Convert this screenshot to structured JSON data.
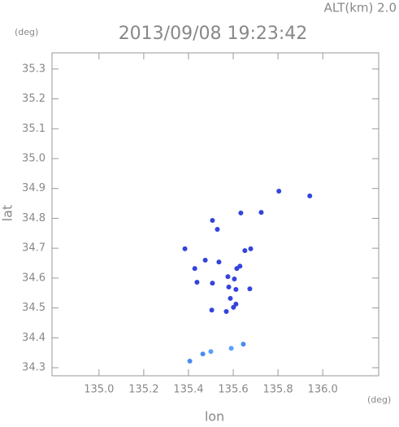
{
  "chart_data": {
    "type": "scatter",
    "title": "2013/09/08 19:23:42",
    "subtitle": "ALT(km) 2.0",
    "y_unit": "(deg)",
    "x_unit": "(deg)",
    "xlabel": "lon",
    "ylabel": "lat",
    "xlim": [
      134.79,
      136.25
    ],
    "ylim": [
      34.273,
      35.354
    ],
    "xticks": [
      {
        "value": 135.0,
        "label": "135.0"
      },
      135.2,
      135.4,
      135.6,
      135.8,
      {
        "value": 136.0,
        "label": "136.0"
      }
    ],
    "yticks": [
      34.3,
      34.4,
      34.5,
      34.6,
      34.7,
      34.8,
      34.9,
      {
        "value": 35.0,
        "label": "35.0"
      },
      35.1,
      35.2,
      35.3
    ],
    "x": [
      135.804,
      135.942,
      135.634,
      135.725,
      135.507,
      135.529,
      135.384,
      135.678,
      135.652,
      135.428,
      135.475,
      135.536,
      135.616,
      135.63,
      135.576,
      135.605,
      135.438,
      135.507,
      135.58,
      135.612,
      135.674,
      135.587,
      135.612,
      135.601,
      135.504,
      135.569,
      135.645,
      135.591,
      135.5,
      135.464,
      135.406
    ],
    "values": [
      34.891,
      34.875,
      34.818,
      34.82,
      34.793,
      34.763,
      34.698,
      34.698,
      34.692,
      34.632,
      34.66,
      34.654,
      34.632,
      34.64,
      34.605,
      34.597,
      34.586,
      34.583,
      34.57,
      34.562,
      34.564,
      34.532,
      34.513,
      34.502,
      34.493,
      34.488,
      34.379,
      34.365,
      34.354,
      34.346,
      34.322
    ],
    "colors": [
      "#3344dd",
      "#3344dd",
      "#3344dd",
      "#3344dd",
      "#3344dd",
      "#3344dd",
      "#3344dd",
      "#3344dd",
      "#3344dd",
      "#3344dd",
      "#3344dd",
      "#3344dd",
      "#3344dd",
      "#3344dd",
      "#3344dd",
      "#3344dd",
      "#3344dd",
      "#3344dd",
      "#3344dd",
      "#3344dd",
      "#3344dd",
      "#3344dd",
      "#3344dd",
      "#3344dd",
      "#3344dd",
      "#3344dd",
      "#4a8cf0",
      "#5aa0ff",
      "#5aa0ff",
      "#4a8cf0",
      "#4a8cf0"
    ]
  }
}
